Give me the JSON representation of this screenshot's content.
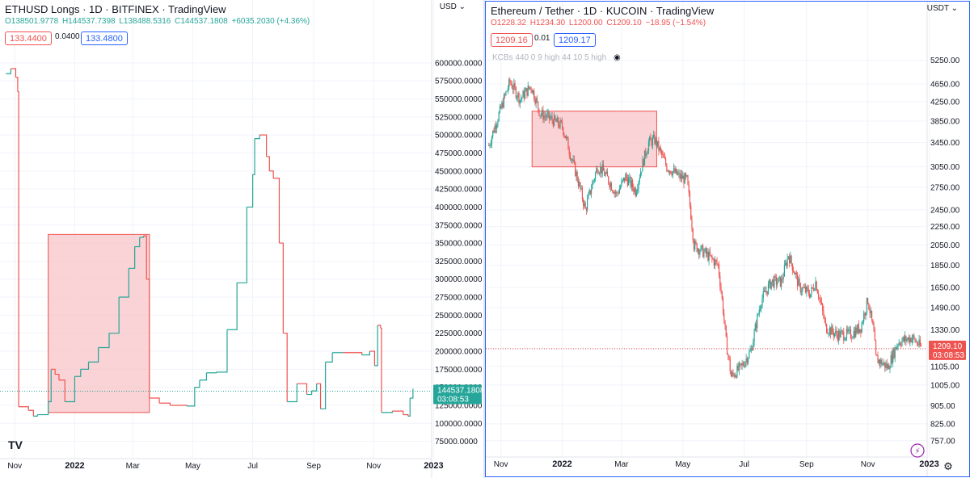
{
  "left": {
    "title": "ETHUSD Longs · 1D · BITFINEX · TradingView",
    "ohlc": {
      "o": "O138501.9778",
      "h": "H144537.7398",
      "l": "L138488.5316",
      "c": "C144537.1808",
      "chg": "+6035.2030 (+4.36%)"
    },
    "bid": "133.4400",
    "spread": "0.0400",
    "ask": "133.4800",
    "currency": "USD",
    "price_label": "144537.1808",
    "timer": "03:08:53",
    "logo": "TV",
    "colors": {
      "up": "#26a69a",
      "down": "#ef5350",
      "box_fill": "#f8c8cb",
      "box_stroke": "#ef5350"
    }
  },
  "right": {
    "title": "Ethereum / Tether · 1D · KUCOIN · TradingView",
    "ohlc": {
      "o": "O1228.32",
      "h": "H1234.30",
      "l": "L1200.00",
      "c": "C1209.10",
      "chg": "−18.95 (−1.54%)"
    },
    "bid": "1209.16",
    "spread": "0.01",
    "ask": "1209.17",
    "currency": "USDT",
    "indicator": "KCBs 440 0 9 high 44 10 5 high",
    "price_label": "1209.10",
    "timer": "03:08:53",
    "flash_icon": "⚡",
    "colors": {
      "up": "#26a69a",
      "down": "#ef5350",
      "box_fill": "#f8c8cb",
      "box_stroke": "#ef5350"
    }
  },
  "chart_data": [
    {
      "type": "line",
      "title": "ETHUSD Longs · 1D · BITFINEX · TradingView",
      "ylabel": "USD",
      "ylim": [
        60000,
        620000
      ],
      "yticks": [
        "75000.0000",
        "100000.0000",
        "125000.0000",
        "150000.0000",
        "175000.0000",
        "200000.0000",
        "225000.0000",
        "250000.0000",
        "275000.0000",
        "300000.0000",
        "325000.0000",
        "350000.0000",
        "375000.0000",
        "400000.0000",
        "425000.0000",
        "450000.0000",
        "475000.0000",
        "500000.0000",
        "525000.0000",
        "550000.0000",
        "575000.0000",
        "600000.0000"
      ],
      "xticks": [
        "Nov",
        "2022",
        "Mar",
        "May",
        "Jul",
        "Sep",
        "Nov",
        "2023"
      ],
      "x": [
        "2021-10-23",
        "2021-10-28",
        "2021-11-02",
        "2021-11-04",
        "2021-11-05",
        "2021-11-15",
        "2021-11-20",
        "2021-11-24",
        "2021-12-05",
        "2021-12-08",
        "2021-12-12",
        "2021-12-16",
        "2021-12-22",
        "2022-01-01",
        "2022-01-07",
        "2022-01-15",
        "2022-01-25",
        "2022-02-05",
        "2022-02-15",
        "2022-02-25",
        "2022-03-03",
        "2022-03-08",
        "2022-03-12",
        "2022-03-15",
        "2022-03-18",
        "2022-03-28",
        "2022-04-08",
        "2022-04-25",
        "2022-05-03",
        "2022-05-08",
        "2022-05-15",
        "2022-05-25",
        "2022-06-05",
        "2022-06-15",
        "2022-06-25",
        "2022-07-01",
        "2022-07-03",
        "2022-07-08",
        "2022-07-15",
        "2022-07-18",
        "2022-07-22",
        "2022-07-28",
        "2022-08-01",
        "2022-08-05",
        "2022-08-15",
        "2022-08-25",
        "2022-08-30",
        "2022-09-04",
        "2022-09-08",
        "2022-09-13",
        "2022-09-20",
        "2022-10-01",
        "2022-10-20",
        "2022-10-28",
        "2022-11-02",
        "2022-11-05",
        "2022-11-08",
        "2022-11-09",
        "2022-11-20",
        "2022-12-01",
        "2022-12-06",
        "2022-12-08",
        "2022-12-11"
      ],
      "y": [
        585000,
        592000,
        580000,
        560000,
        123000,
        118000,
        110000,
        112000,
        130000,
        175000,
        168000,
        160000,
        130000,
        165000,
        175000,
        185000,
        205000,
        225000,
        275000,
        315000,
        345000,
        358000,
        360000,
        300000,
        135000,
        128000,
        125000,
        124000,
        150000,
        160000,
        170000,
        171000,
        230000,
        295000,
        400000,
        445000,
        495000,
        500000,
        470000,
        450000,
        440000,
        350000,
        225000,
        130000,
        155000,
        140000,
        145000,
        155000,
        120000,
        185000,
        198000,
        198000,
        195000,
        200000,
        180000,
        236000,
        232000,
        115000,
        117000,
        112000,
        110000,
        135000,
        148000
      ],
      "current": 144537.1808,
      "annotation": {
        "type": "box",
        "x": [
          "2021-12-05",
          "2022-03-18"
        ],
        "y": [
          115000,
          362000
        ]
      }
    },
    {
      "type": "candlestick",
      "title": "Ethereum / Tether · 1D · KUCOIN · TradingView",
      "ylabel": "USDT",
      "scale": "log",
      "ylim": [
        720,
        6000
      ],
      "yticks": [
        "757.00",
        "825.00",
        "905.00",
        "1005.00",
        "1105.00",
        "1209.10",
        "1330.00",
        "1490.00",
        "1650.00",
        "1850.00",
        "2050.00",
        "2250.00",
        "2450.00",
        "2750.00",
        "3050.00",
        "3450.00",
        "3850.00",
        "4250.00",
        "4650.00",
        "5250.00"
      ],
      "xticks": [
        "Nov",
        "2022",
        "Mar",
        "May",
        "Jul",
        "Sep",
        "Nov",
        "2023"
      ],
      "x": [
        "2021-10-20",
        "2021-11-01",
        "2021-11-10",
        "2021-11-20",
        "2021-12-01",
        "2021-12-10",
        "2021-12-20",
        "2022-01-01",
        "2022-01-10",
        "2022-01-24",
        "2022-02-05",
        "2022-02-10",
        "2022-02-24",
        "2022-03-05",
        "2022-03-15",
        "2022-03-28",
        "2022-04-03",
        "2022-04-15",
        "2022-04-28",
        "2022-05-05",
        "2022-05-12",
        "2022-05-25",
        "2022-06-05",
        "2022-06-13",
        "2022-06-18",
        "2022-06-28",
        "2022-07-08",
        "2022-07-18",
        "2022-07-28",
        "2022-08-07",
        "2022-08-14",
        "2022-08-25",
        "2022-09-05",
        "2022-09-10",
        "2022-09-20",
        "2022-10-01",
        "2022-10-15",
        "2022-10-25",
        "2022-11-01",
        "2022-11-07",
        "2022-11-09",
        "2022-11-21",
        "2022-12-01",
        "2022-12-15",
        "2022-12-25"
      ],
      "y": [
        3400,
        4100,
        4700,
        4300,
        4600,
        4000,
        3900,
        3750,
        3200,
        2450,
        3050,
        3000,
        2650,
        2900,
        2700,
        3450,
        3500,
        3050,
        2900,
        2850,
        2050,
        1950,
        1850,
        1250,
        1050,
        1100,
        1200,
        1550,
        1700,
        1700,
        1950,
        1650,
        1600,
        1700,
        1350,
        1300,
        1300,
        1350,
        1550,
        1300,
        1150,
        1100,
        1250,
        1280,
        1209
      ]
    }
  ]
}
